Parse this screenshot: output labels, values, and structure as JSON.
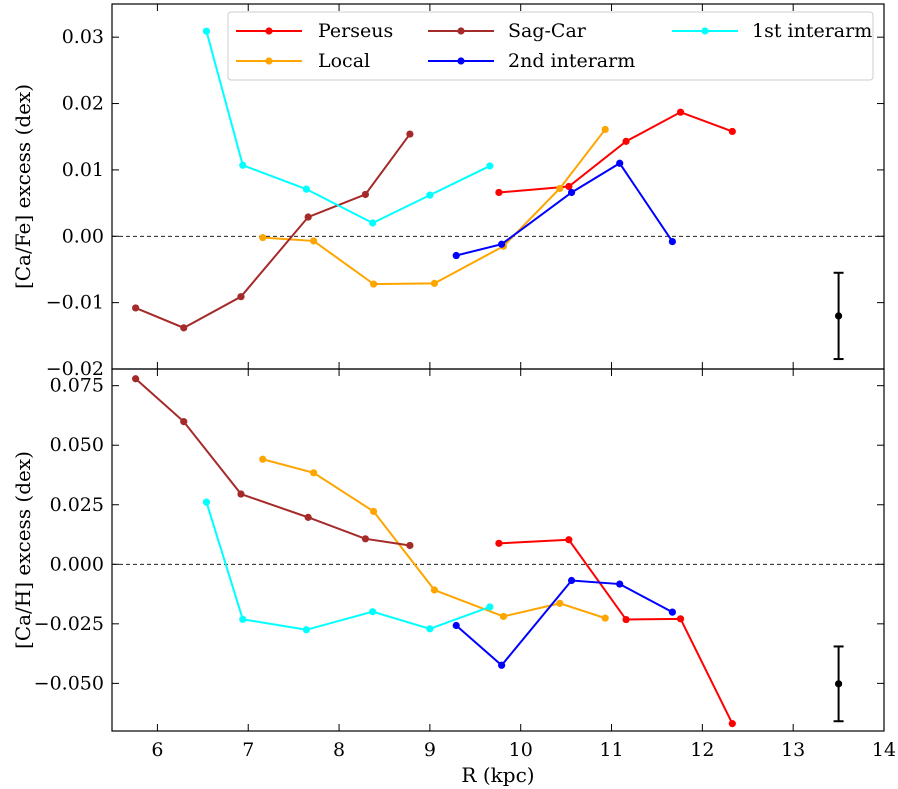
{
  "chart_data": [
    {
      "type": "line",
      "panel": "top",
      "ylabel": "[Ca/Fe] excess (dex)",
      "xlim": [
        5.5,
        14
      ],
      "ylim": [
        -0.02,
        0.035
      ],
      "yticks": [
        -0.02,
        -0.01,
        0.0,
        0.01,
        0.02,
        0.03
      ],
      "ytick_labels": [
        "−0.02",
        "−0.01",
        "0.00",
        "0.01",
        "0.02",
        "0.03"
      ],
      "zero_line": 0,
      "error_bar": {
        "x": 13.5,
        "y": -0.012,
        "err": 0.0065
      },
      "legend": {
        "location": "top",
        "entries": [
          "Perseus",
          "Local",
          "Sag-Car",
          "2nd interarm",
          "1st interarm"
        ]
      },
      "series": [
        {
          "name": "Perseus",
          "color": "#ff0000",
          "x": [
            9.76,
            10.53,
            11.16,
            11.76,
            12.33
          ],
          "y": [
            0.0066,
            0.0075,
            0.0143,
            0.0187,
            0.0158
          ]
        },
        {
          "name": "Local",
          "color": "#ffa500",
          "x": [
            7.16,
            7.72,
            8.38,
            9.05,
            9.81,
            10.43,
            10.93
          ],
          "y": [
            -0.0002,
            -0.0007,
            -0.0072,
            -0.0071,
            -0.0015,
            0.0072,
            0.0161
          ]
        },
        {
          "name": "Sag-Car",
          "color": "#a52a2a",
          "x": [
            5.76,
            6.29,
            6.92,
            7.66,
            8.29,
            8.78
          ],
          "y": [
            -0.0108,
            -0.0138,
            -0.0091,
            0.0029,
            0.0063,
            0.0154
          ]
        },
        {
          "name": "2nd interarm",
          "color": "#0000ff",
          "x": [
            9.29,
            9.79,
            10.56,
            11.09,
            11.67
          ],
          "y": [
            -0.0029,
            -0.0012,
            0.0066,
            0.011,
            -0.0008
          ]
        },
        {
          "name": "1st interarm",
          "color": "#00ffff",
          "x": [
            6.54,
            6.94,
            7.64,
            8.37,
            9.0,
            9.66
          ],
          "y": [
            0.0309,
            0.0107,
            0.0071,
            0.002,
            0.0062,
            0.0106
          ]
        }
      ]
    },
    {
      "type": "line",
      "panel": "bottom",
      "xlabel": "R (kpc)",
      "ylabel": "[Ca/H] excess (dex)",
      "xlim": [
        5.5,
        14
      ],
      "ylim": [
        -0.07,
        0.082
      ],
      "xticks": [
        6,
        7,
        8,
        9,
        10,
        11,
        12,
        13,
        14
      ],
      "xtick_labels": [
        "6",
        "7",
        "8",
        "9",
        "10",
        "11",
        "12",
        "13",
        "14"
      ],
      "yticks": [
        -0.05,
        -0.025,
        0.0,
        0.025,
        0.05,
        0.075
      ],
      "ytick_labels": [
        "−0.050",
        "−0.025",
        "0.000",
        "0.025",
        "0.050",
        "0.075"
      ],
      "zero_line": 0,
      "error_bar": {
        "x": 13.5,
        "y": -0.0502,
        "err": 0.0157
      },
      "series": [
        {
          "name": "Perseus",
          "color": "#ff0000",
          "x": [
            9.76,
            10.53,
            11.16,
            11.76,
            12.33
          ],
          "y": [
            0.0088,
            0.0103,
            -0.0232,
            -0.0229,
            -0.0669
          ]
        },
        {
          "name": "Local",
          "color": "#ffa500",
          "x": [
            7.16,
            7.72,
            8.38,
            9.05,
            9.81,
            10.43,
            10.93
          ],
          "y": [
            0.0441,
            0.0384,
            0.0222,
            -0.0108,
            -0.0219,
            -0.0164,
            -0.0226
          ]
        },
        {
          "name": "Sag-Car",
          "color": "#a52a2a",
          "x": [
            5.76,
            6.29,
            6.92,
            7.66,
            8.29,
            8.78
          ],
          "y": [
            0.0779,
            0.0599,
            0.0295,
            0.0197,
            0.0107,
            0.0079
          ]
        },
        {
          "name": "2nd interarm",
          "color": "#0000ff",
          "x": [
            9.29,
            9.79,
            10.56,
            11.09,
            11.67
          ],
          "y": [
            -0.0257,
            -0.0424,
            -0.0068,
            -0.0083,
            -0.0201
          ]
        },
        {
          "name": "1st interarm",
          "color": "#00ffff",
          "x": [
            6.54,
            6.94,
            7.64,
            8.37,
            9.0,
            9.66
          ],
          "y": [
            0.0261,
            -0.0231,
            -0.0275,
            -0.0199,
            -0.0271,
            -0.0179
          ]
        }
      ]
    }
  ]
}
